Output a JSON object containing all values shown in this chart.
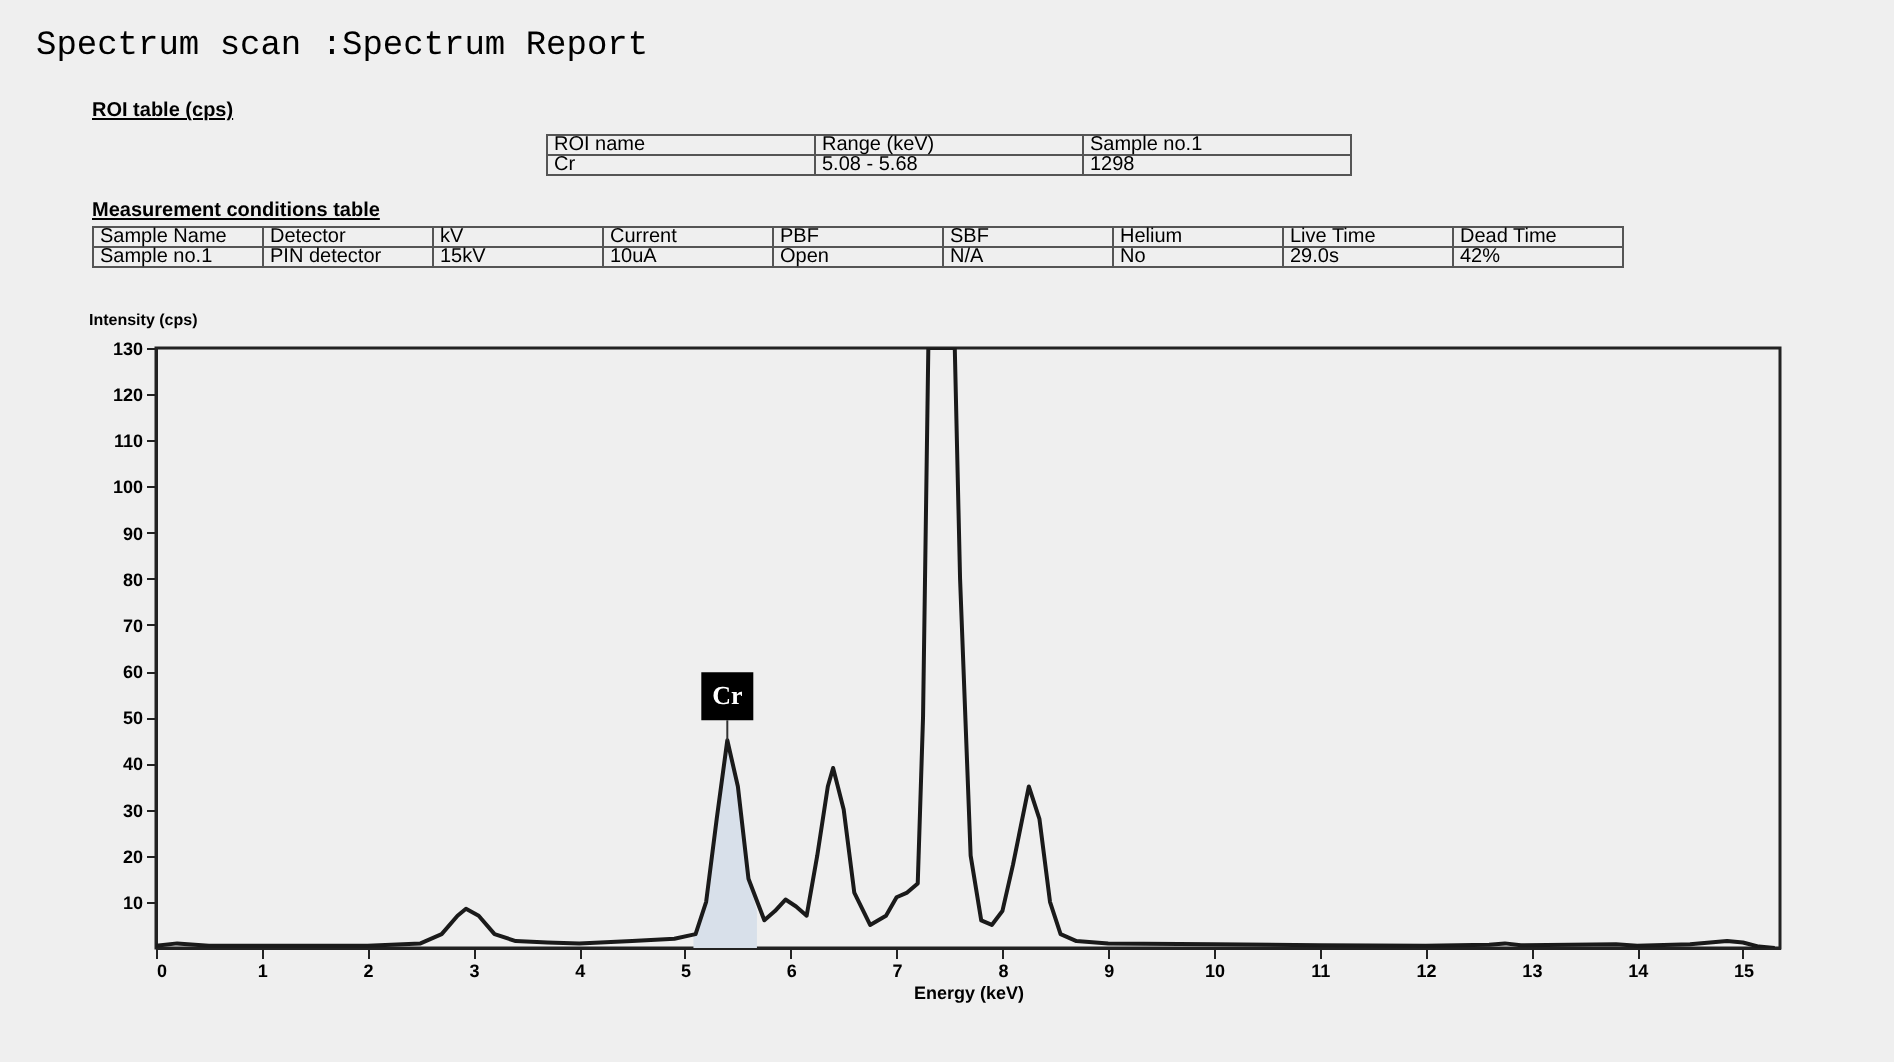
{
  "chart_data": {
    "type": "line",
    "title": "Spectrum scan :Spectrum Report",
    "xlabel": "Energy (keV)",
    "ylabel": "Intensity (cps)",
    "annotations": [
      "ROI table (cps)",
      "ROI name",
      "Range (keV)",
      "Sample no.1",
      "Cr",
      "5.08 - 5.68",
      "1298",
      "Measurement conditions table",
      "Sample Name",
      "Detector",
      "kV",
      "Current",
      "PBF",
      "SBF",
      "Helium",
      "Live Time",
      "Dead Time",
      "Sample no.1",
      "PIN detector",
      "15kV",
      "10uA",
      "Open",
      "N/A",
      "No",
      "29.0s",
      "42%",
      {
        "text": "Cr",
        "x": 5.4,
        "y": 45
      }
    ],
    "series": [
      {
        "type": "area",
        "color": "#d8e0ea",
        "x": [
          5.08,
          5.2,
          5.3,
          5.4,
          5.5,
          5.6,
          5.68
        ],
        "values": [
          2.5,
          10,
          28,
          45,
          35,
          15,
          8
        ]
      },
      {
        "type": "line",
        "color": "#1a1a1a",
        "x": [
          0,
          0.2,
          0.5,
          1,
          1.5,
          2,
          2.5,
          2.7,
          2.85,
          2.93,
          3.05,
          3.2,
          3.4,
          3.7,
          4.0,
          4.5,
          4.9,
          5.1,
          5.2,
          5.3,
          5.4,
          5.5,
          5.6,
          5.75,
          5.85,
          5.95,
          6.05,
          6.15,
          6.25,
          6.35,
          6.4,
          6.5,
          6.6,
          6.75,
          6.9,
          7.0,
          7.1,
          7.2,
          7.25,
          7.3,
          7.55,
          7.6,
          7.7,
          7.8,
          7.9,
          8.0,
          8.1,
          8.25,
          8.35,
          8.45,
          8.55,
          8.7,
          9,
          10,
          11,
          12,
          12.6,
          12.75,
          12.9,
          13.8,
          14,
          14.5,
          14.85,
          15.0,
          15.15,
          15.3
        ],
        "values": [
          0.5,
          1,
          0.5,
          0.5,
          0.5,
          0.5,
          1,
          3,
          7,
          8.5,
          7,
          3,
          1.5,
          1.2,
          1,
          1.5,
          2,
          3,
          10,
          28,
          45,
          35,
          15,
          6,
          8,
          10.5,
          9,
          7,
          20,
          35,
          39,
          30,
          12,
          5,
          7,
          11,
          12,
          14,
          50,
          130,
          130,
          80,
          20,
          6,
          5,
          8,
          18,
          35,
          28,
          10,
          3,
          1.5,
          1,
          0.8,
          0.6,
          0.5,
          0.7,
          1,
          0.6,
          0.8,
          0.5,
          0.8,
          1.5,
          1.2,
          0.3,
          0
        ]
      }
    ],
    "xlim": [
      0,
      15.35
    ],
    "xticks": [
      0,
      1,
      2,
      3,
      4,
      5,
      6,
      7,
      8,
      9,
      10,
      11,
      12,
      13,
      14,
      15
    ],
    "ylim": [
      0,
      130
    ],
    "yticks": [
      10,
      20,
      30,
      40,
      50,
      60,
      70,
      80,
      90,
      100,
      110,
      120,
      130
    ],
    "grid": false
  }
}
